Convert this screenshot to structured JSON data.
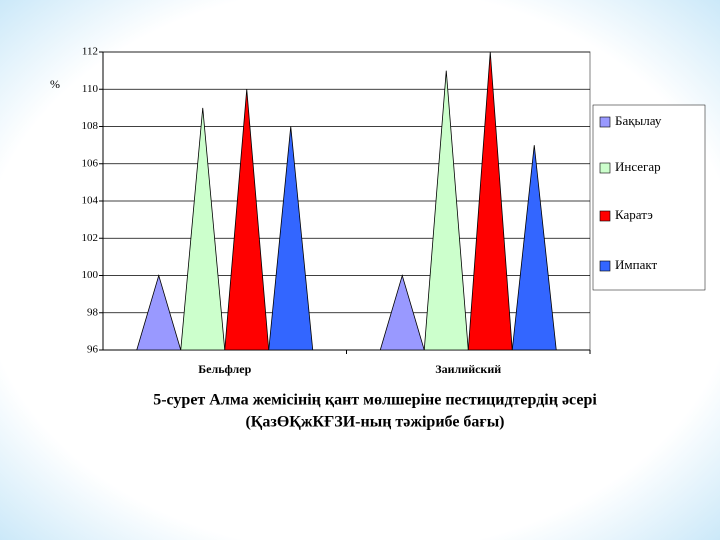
{
  "chart_data": {
    "type": "cone-bar",
    "y_label": "%",
    "categories": [
      "Бельфлер",
      "Заилийский"
    ],
    "series": [
      {
        "name": "Бақылау",
        "color": "#9999ff",
        "values": [
          100,
          100
        ]
      },
      {
        "name": "Инсегар",
        "color": "#ccffcc",
        "values": [
          109,
          111
        ]
      },
      {
        "name": "Каратэ",
        "color": "#ff0000",
        "values": [
          110,
          112
        ]
      },
      {
        "name": "Импакт",
        "color": "#3366ff",
        "values": [
          108,
          107
        ]
      }
    ],
    "ylim": [
      96,
      112
    ],
    "yticks": [
      96,
      98,
      100,
      102,
      104,
      106,
      108,
      110,
      112
    ],
    "grid": true,
    "legend": "right",
    "caption": [
      "5-сурет Алма жемісінің қант мөлшеріне пестицидтердің әсері",
      "(ҚазӨҚжКҒЗИ-ның тәжірибе бағы)"
    ]
  }
}
